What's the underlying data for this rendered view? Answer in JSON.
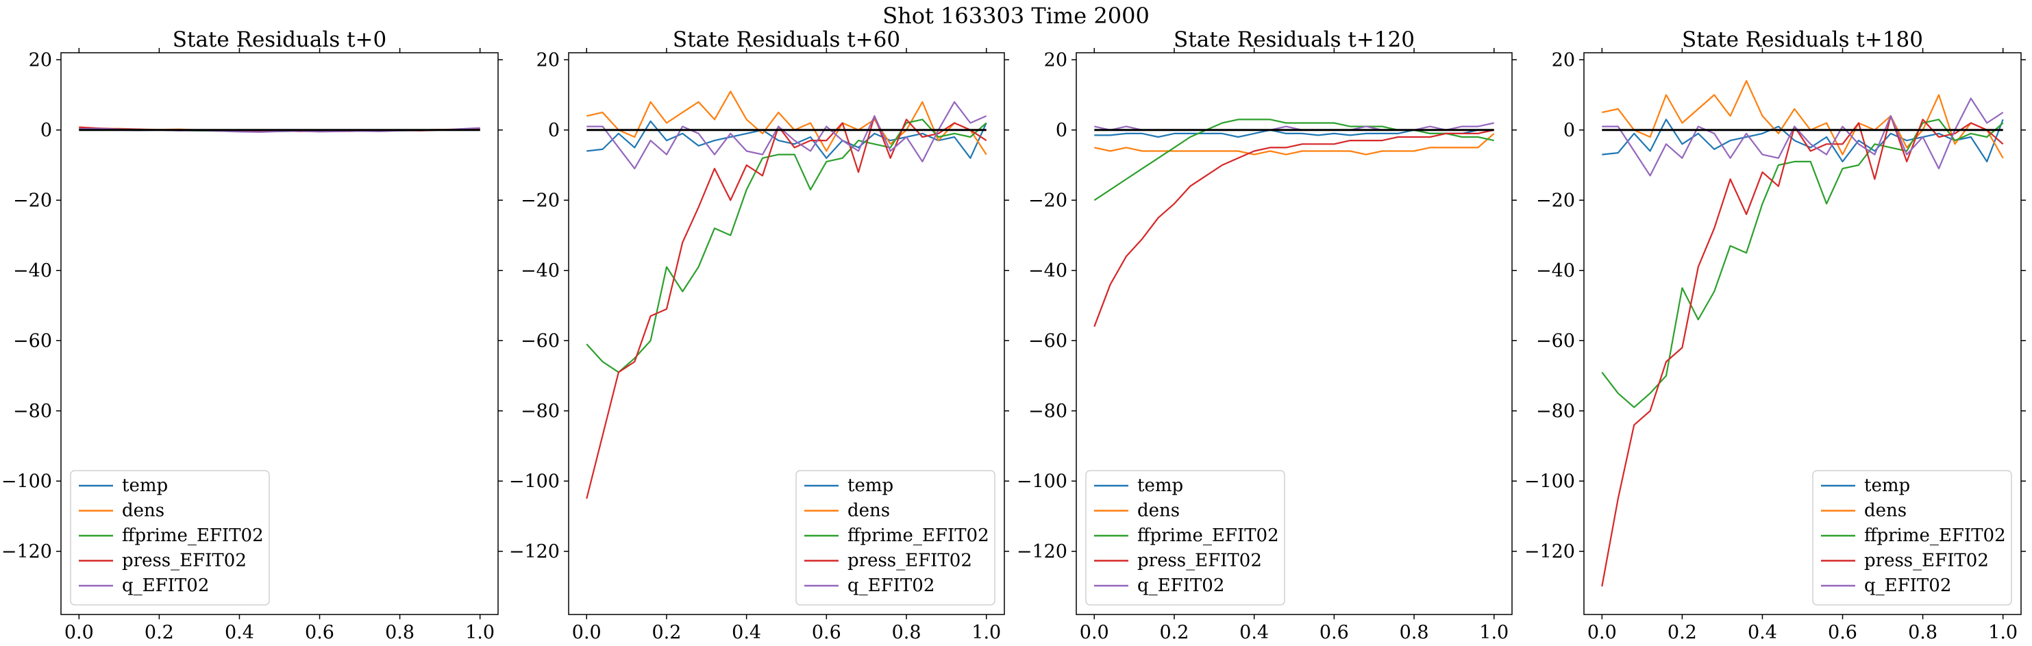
{
  "suptitle": "Shot 163303   Time 2000",
  "colors": {
    "temp": "#1f77b4",
    "dens": "#ff7f0e",
    "ffprime_EFIT02": "#2ca02c",
    "press_EFIT02": "#d62728",
    "q_EFIT02": "#9467bd",
    "zero_line": "#000000"
  },
  "chart_data": [
    {
      "type": "line",
      "title": "State Residuals t+0",
      "xlim": [
        0.0,
        1.0
      ],
      "ylim": [
        -138,
        22
      ],
      "xticks": [
        "0.0",
        "0.2",
        "0.4",
        "0.6",
        "0.8",
        "1.0"
      ],
      "yticks": [
        "20",
        "0",
        "−20",
        "−40",
        "−60",
        "−80",
        "−100",
        "−120"
      ],
      "legend": "lower-left",
      "x": [
        0.0,
        0.05,
        0.1,
        0.15,
        0.2,
        0.25,
        0.3,
        0.35,
        0.4,
        0.45,
        0.5,
        0.55,
        0.6,
        0.65,
        0.7,
        0.75,
        0.8,
        0.85,
        0.9,
        0.95,
        1.0
      ],
      "series": [
        {
          "name": "temp",
          "values": [
            0.2,
            0.1,
            0.0,
            -0.1,
            0.0,
            -0.1,
            -0.2,
            -0.1,
            0.0,
            -0.2,
            -0.1,
            -0.2,
            -0.3,
            -0.2,
            -0.1,
            -0.2,
            -0.1,
            0.0,
            0.1,
            0.0,
            0.1
          ]
        },
        {
          "name": "dens",
          "values": [
            0.5,
            0.3,
            0.4,
            0.2,
            0.1,
            0.2,
            0.0,
            -0.1,
            0.0,
            -0.2,
            -0.1,
            -0.3,
            -0.2,
            -0.4,
            -0.3,
            -0.2,
            -0.1,
            0.0,
            0.1,
            0.2,
            0.3
          ]
        },
        {
          "name": "ffprime_EFIT02",
          "values": [
            0.4,
            0.3,
            0.2,
            0.1,
            0.0,
            -0.1,
            -0.2,
            -0.3,
            -0.2,
            -0.3,
            -0.4,
            -0.3,
            -0.2,
            -0.3,
            -0.2,
            -0.1,
            -0.2,
            -0.1,
            0.0,
            0.1,
            0.2
          ]
        },
        {
          "name": "press_EFIT02",
          "values": [
            0.8,
            0.5,
            0.3,
            0.2,
            0.0,
            -0.1,
            0.0,
            -0.2,
            -0.1,
            -0.3,
            -0.2,
            -0.4,
            -0.3,
            -0.2,
            -0.3,
            -0.2,
            -0.1,
            -0.2,
            0.0,
            0.1,
            0.2
          ]
        },
        {
          "name": "q_EFIT02",
          "values": [
            0.3,
            0.4,
            0.2,
            0.1,
            0.0,
            -0.2,
            -0.1,
            -0.3,
            -0.5,
            -0.6,
            -0.4,
            -0.3,
            -0.5,
            -0.4,
            -0.3,
            -0.4,
            -0.2,
            -0.1,
            0.0,
            0.3,
            0.6
          ]
        },
        {
          "name": "zero",
          "values": [
            0,
            0
          ],
          "x": [
            0.0,
            1.0
          ],
          "legend": false
        }
      ]
    },
    {
      "type": "line",
      "title": "State Residuals t+60",
      "xlim": [
        0.0,
        1.0
      ],
      "ylim": [
        -138,
        22
      ],
      "xticks": [
        "0.0",
        "0.2",
        "0.4",
        "0.6",
        "0.8",
        "1.0"
      ],
      "yticks": [
        "20",
        "0",
        "−20",
        "−40",
        "−60",
        "−80",
        "−100",
        "−120"
      ],
      "legend": "lower-right",
      "x": [
        0.0,
        0.04,
        0.08,
        0.12,
        0.16,
        0.2,
        0.24,
        0.28,
        0.32,
        0.36,
        0.4,
        0.44,
        0.48,
        0.52,
        0.56,
        0.6,
        0.64,
        0.68,
        0.72,
        0.76,
        0.8,
        0.84,
        0.88,
        0.92,
        0.96,
        1.0
      ],
      "series": [
        {
          "name": "temp",
          "values": [
            -6,
            -5.5,
            -1,
            -5,
            2.5,
            -3,
            -1,
            -4.5,
            -3,
            -2,
            -1,
            0,
            -3,
            -4,
            -2,
            -8,
            -3,
            -5,
            -1,
            -3,
            -2,
            -1,
            -3,
            -2,
            -8,
            2
          ]
        },
        {
          "name": "dens",
          "values": [
            4,
            5,
            0,
            -2,
            8,
            2,
            5,
            8,
            3,
            11,
            3,
            -1,
            5,
            0,
            2,
            -6,
            2,
            0,
            3,
            -4,
            0,
            8,
            -3,
            2,
            0,
            -7
          ]
        },
        {
          "name": "ffprime_EFIT02",
          "values": [
            -61,
            -66,
            -69,
            -65,
            -60,
            -39,
            -46,
            -39,
            -28,
            -30,
            -17,
            -8,
            -7,
            -7,
            -17,
            -9,
            -8,
            -3,
            -4,
            -5,
            2,
            3,
            -2,
            -1,
            -2,
            2
          ]
        },
        {
          "name": "press_EFIT02",
          "values": [
            -105,
            -87,
            -69,
            -66,
            -53,
            -51,
            -32,
            -22,
            -11,
            -20,
            -10,
            -13,
            1,
            -5,
            -3,
            -3,
            2,
            -12,
            4,
            -8,
            3,
            -2,
            -1,
            2,
            0,
            -3
          ]
        },
        {
          "name": "q_EFIT02",
          "values": [
            1,
            1,
            -5,
            -11,
            -3,
            -7,
            1,
            -1,
            -7,
            -1,
            -6,
            -7,
            1,
            -3,
            -6,
            1,
            -3,
            -6,
            4,
            -6,
            -2,
            -9,
            0,
            8,
            2,
            4
          ]
        },
        {
          "name": "zero",
          "values": [
            0,
            0
          ],
          "x": [
            0.0,
            1.0
          ],
          "legend": false
        }
      ]
    },
    {
      "type": "line",
      "title": "State Residuals t+120",
      "xlim": [
        0.0,
        1.0
      ],
      "ylim": [
        -138,
        22
      ],
      "xticks": [
        "0.0",
        "0.2",
        "0.4",
        "0.6",
        "0.8",
        "1.0"
      ],
      "yticks": [
        "20",
        "0",
        "−20",
        "−40",
        "−60",
        "−80",
        "−100",
        "−120"
      ],
      "legend": "lower-left",
      "x": [
        0.0,
        0.04,
        0.08,
        0.12,
        0.16,
        0.2,
        0.24,
        0.28,
        0.32,
        0.36,
        0.4,
        0.44,
        0.48,
        0.52,
        0.56,
        0.6,
        0.64,
        0.68,
        0.72,
        0.76,
        0.8,
        0.84,
        0.88,
        0.92,
        0.96,
        1.0
      ],
      "series": [
        {
          "name": "temp",
          "values": [
            -1.5,
            -1.5,
            -1,
            -1,
            -2,
            -1,
            -1,
            -1,
            -1,
            -2,
            -1,
            0,
            -1,
            -1,
            -1.5,
            -1,
            -1.5,
            -1,
            -1,
            -1,
            0,
            -1,
            -1,
            -1,
            0,
            0
          ]
        },
        {
          "name": "dens",
          "values": [
            -5,
            -6,
            -5,
            -6,
            -6,
            -6,
            -6,
            -6,
            -6,
            -6,
            -7,
            -6,
            -7,
            -6,
            -6,
            -6,
            -6,
            -7,
            -6,
            -6,
            -6,
            -5,
            -5,
            -5,
            -5,
            -1
          ]
        },
        {
          "name": "ffprime_EFIT02",
          "values": [
            -20,
            -17,
            -14,
            -11,
            -8,
            -5,
            -2,
            0,
            2,
            3,
            3,
            3,
            2,
            2,
            2,
            2,
            1,
            1,
            1,
            0,
            0,
            -1,
            -1,
            -2,
            -2,
            -3
          ]
        },
        {
          "name": "press_EFIT02",
          "values": [
            -56,
            -44,
            -36,
            -31,
            -25,
            -21,
            -16,
            -13,
            -10,
            -8,
            -6,
            -5,
            -5,
            -4,
            -4,
            -4,
            -3,
            -3,
            -3,
            -2,
            -2,
            -2,
            -1,
            -1,
            -1,
            0
          ]
        },
        {
          "name": "q_EFIT02",
          "values": [
            1,
            0,
            1,
            0,
            0,
            0,
            0,
            0,
            0,
            0,
            0,
            0,
            1,
            0,
            0,
            0,
            0,
            1,
            0,
            0,
            0,
            1,
            0,
            1,
            1,
            2
          ]
        },
        {
          "name": "zero",
          "values": [
            0,
            0
          ],
          "x": [
            0.0,
            1.0
          ],
          "legend": false
        }
      ]
    },
    {
      "type": "line",
      "title": "State Residuals t+180",
      "xlim": [
        0.0,
        1.0
      ],
      "ylim": [
        -138,
        22
      ],
      "xticks": [
        "0.0",
        "0.2",
        "0.4",
        "0.6",
        "0.8",
        "1.0"
      ],
      "yticks": [
        "20",
        "0",
        "−20",
        "−40",
        "−60",
        "−80",
        "−100",
        "−120"
      ],
      "legend": "lower-right",
      "x": [
        0.0,
        0.04,
        0.08,
        0.12,
        0.16,
        0.2,
        0.24,
        0.28,
        0.32,
        0.36,
        0.4,
        0.44,
        0.48,
        0.52,
        0.56,
        0.6,
        0.64,
        0.68,
        0.72,
        0.76,
        0.8,
        0.84,
        0.88,
        0.92,
        0.96,
        1.0
      ],
      "series": [
        {
          "name": "temp",
          "values": [
            -7,
            -6.5,
            -1,
            -6,
            3,
            -4,
            -1,
            -5.5,
            -3,
            -2,
            -1,
            1,
            -3,
            -5,
            -2,
            -9,
            -3,
            -6,
            -1,
            -3,
            -2,
            -1,
            -3,
            -2,
            -9,
            3
          ]
        },
        {
          "name": "dens",
          "values": [
            5,
            6,
            0,
            -2,
            10,
            2,
            6,
            10,
            4,
            14,
            4,
            -1,
            6,
            0,
            2,
            -7,
            2,
            0,
            4,
            -5,
            0,
            10,
            -4,
            2,
            0,
            -8
          ]
        },
        {
          "name": "ffprime_EFIT02",
          "values": [
            -69,
            -75,
            -79,
            -75,
            -70,
            -45,
            -54,
            -46,
            -33,
            -35,
            -21,
            -10,
            -9,
            -9,
            -21,
            -11,
            -10,
            -4,
            -5,
            -6,
            2,
            3,
            -3,
            -1,
            -2,
            2
          ]
        },
        {
          "name": "press_EFIT02",
          "values": [
            -130,
            -105,
            -84,
            -80,
            -66,
            -62,
            -39,
            -28,
            -14,
            -24,
            -12,
            -16,
            1,
            -6,
            -4,
            -4,
            2,
            -14,
            4,
            -9,
            3,
            -2,
            -1,
            2,
            0,
            -4
          ]
        },
        {
          "name": "q_EFIT02",
          "values": [
            1,
            1,
            -6,
            -13,
            -4,
            -8,
            1,
            -1,
            -8,
            -1,
            -7,
            -8,
            1,
            -4,
            -7,
            1,
            -4,
            -7,
            4,
            -7,
            -2,
            -11,
            0,
            9,
            2,
            5
          ]
        },
        {
          "name": "zero",
          "values": [
            0,
            0
          ],
          "x": [
            0.0,
            1.0
          ],
          "legend": false
        }
      ]
    }
  ]
}
